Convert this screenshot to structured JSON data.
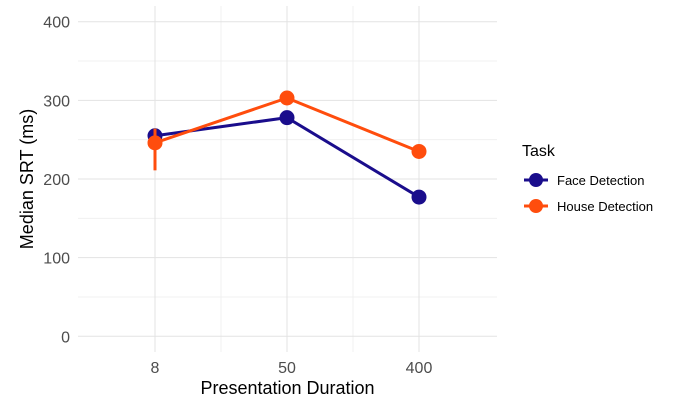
{
  "chart_data": {
    "type": "line",
    "title": "",
    "xlabel": "Presentation Duration",
    "ylabel": "Median SRT (ms)",
    "categories": [
      "8",
      "50",
      "400"
    ],
    "ylim": [
      -20,
      420
    ],
    "yticks": [
      0,
      100,
      200,
      300,
      400
    ],
    "grid": true,
    "legend": {
      "title": "Task",
      "position": "right"
    },
    "series": [
      {
        "name": "Face Detection",
        "color": "#1a0d8c",
        "values": [
          255,
          278,
          177
        ],
        "error_low": [
          250,
          278,
          177
        ],
        "error_high": [
          260,
          278,
          177
        ]
      },
      {
        "name": "House Detection",
        "color": "#ff4d0d",
        "values": [
          246,
          303,
          235
        ],
        "error_low": [
          211,
          298,
          235
        ],
        "error_high": [
          264,
          308,
          235
        ]
      }
    ]
  }
}
